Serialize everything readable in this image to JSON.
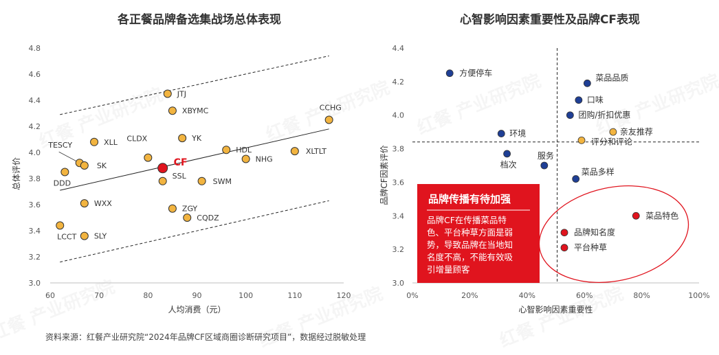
{
  "left_title": "各正餐品牌备选集战场总体表现",
  "right_title": "心智影响因素重要性及品牌CF表现",
  "source_note": "资料来源：红餐产业研究院“2024年品牌CF区域商圈诊断研究项目”，数据经过脱敏处理",
  "watermark": "红餐 产业研究院",
  "colors": {
    "orange": "#F2B440",
    "red": "#E0141E",
    "navy": "#1F3F95",
    "highlight_box": "#E0141E"
  },
  "chart_data": [
    {
      "type": "scatter",
      "title": "各正餐品牌备选集战场总体表现",
      "xlabel": "人均消费（元）",
      "ylabel": "总体评价",
      "xlim": [
        60,
        120
      ],
      "ylim": [
        3.0,
        4.8
      ],
      "xticks": [
        "60",
        "70",
        "80",
        "90",
        "100",
        "110",
        "120"
      ],
      "yticks": [
        "3.0",
        "3.2",
        "3.4",
        "3.6",
        "3.8",
        "4.0",
        "4.2",
        "4.4",
        "4.6",
        "4.8"
      ],
      "grid": false,
      "points": [
        {
          "label": "JTJ",
          "x": 84,
          "y": 4.45
        },
        {
          "label": "XBYMC",
          "x": 85,
          "y": 4.32
        },
        {
          "label": "CCHG",
          "x": 117,
          "y": 4.25
        },
        {
          "label": "YK",
          "x": 87,
          "y": 4.11
        },
        {
          "label": "XLL",
          "x": 69,
          "y": 4.08
        },
        {
          "label": "HDL",
          "x": 96,
          "y": 4.02
        },
        {
          "label": "XLTLT",
          "x": 110,
          "y": 4.01
        },
        {
          "label": "CLDX",
          "x": 80,
          "y": 3.96
        },
        {
          "label": "NHG",
          "x": 100,
          "y": 3.95
        },
        {
          "label": "TESCY",
          "x": 66,
          "y": 3.92
        },
        {
          "label": "SK",
          "x": 67,
          "y": 3.9
        },
        {
          "label": "DDD",
          "x": 63,
          "y": 3.85
        },
        {
          "label": "CF",
          "x": 83,
          "y": 3.88,
          "highlight": true
        },
        {
          "label": "SSL",
          "x": 83,
          "y": 3.78
        },
        {
          "label": "SWM",
          "x": 91,
          "y": 3.78
        },
        {
          "label": "WXX",
          "x": 67,
          "y": 3.61
        },
        {
          "label": "ZGY",
          "x": 85,
          "y": 3.57
        },
        {
          "label": "CQDZ",
          "x": 88,
          "y": 3.5
        },
        {
          "label": "LCCT",
          "x": 62,
          "y": 3.44
        },
        {
          "label": "SLY",
          "x": 67,
          "y": 3.36
        }
      ],
      "trend_line": {
        "x": [
          62,
          117
        ],
        "y": [
          3.71,
          4.18
        ]
      },
      "upper_band": {
        "x": [
          62,
          117
        ],
        "y": [
          4.29,
          4.74
        ]
      },
      "lower_band": {
        "x": [
          62,
          117
        ],
        "y": [
          3.16,
          3.63
        ]
      }
    },
    {
      "type": "scatter",
      "title": "心智影响因素重要性及品牌CF表现",
      "xlabel": "心智影响因素重要性",
      "ylabel": "品牌CF因素评价",
      "xlim": [
        0,
        100
      ],
      "ylim": [
        3.0,
        4.4
      ],
      "xticks": [
        "0%",
        "20%",
        "40%",
        "60%",
        "80%",
        "100%"
      ],
      "yticks": [
        "3.0",
        "3.2",
        "3.4",
        "3.6",
        "3.8",
        "4.0",
        "4.2",
        "4.4"
      ],
      "grid": false,
      "quadrant_lines": {
        "x": 50.5,
        "y": 3.84
      },
      "points": [
        {
          "label": "方便停车",
          "x": 13,
          "y": 4.25,
          "color": "navy"
        },
        {
          "label": "菜品品质",
          "x": 61,
          "y": 4.19,
          "color": "navy"
        },
        {
          "label": "口味",
          "x": 58,
          "y": 4.09,
          "color": "navy"
        },
        {
          "label": "团购/折扣优惠",
          "x": 55,
          "y": 4.0,
          "color": "navy"
        },
        {
          "label": "环境",
          "x": 31,
          "y": 3.89,
          "color": "navy"
        },
        {
          "label": "亲友推荐",
          "x": 70,
          "y": 3.9,
          "color": "orange"
        },
        {
          "label": "评分和评论",
          "x": 59,
          "y": 3.85,
          "color": "orange"
        },
        {
          "label": "档次",
          "x": 33,
          "y": 3.77,
          "color": "navy"
        },
        {
          "label": "服务",
          "x": 46,
          "y": 3.7,
          "color": "navy"
        },
        {
          "label": "菜品多样",
          "x": 57,
          "y": 3.62,
          "color": "navy"
        },
        {
          "label": "菜品特色",
          "x": 78,
          "y": 3.4,
          "color": "red"
        },
        {
          "label": "品牌知名度",
          "x": 53,
          "y": 3.3,
          "color": "red"
        },
        {
          "label": "平台种草",
          "x": 53,
          "y": 3.21,
          "color": "red"
        }
      ],
      "callout": {
        "heading": "品牌传播有待加强",
        "lines": [
          "品牌CF在传播菜品特",
          "色、平台种草方面是弱",
          "势，导致品牌在当地知",
          "名度不高，不能有效吸",
          "引增量顾客"
        ]
      }
    }
  ]
}
